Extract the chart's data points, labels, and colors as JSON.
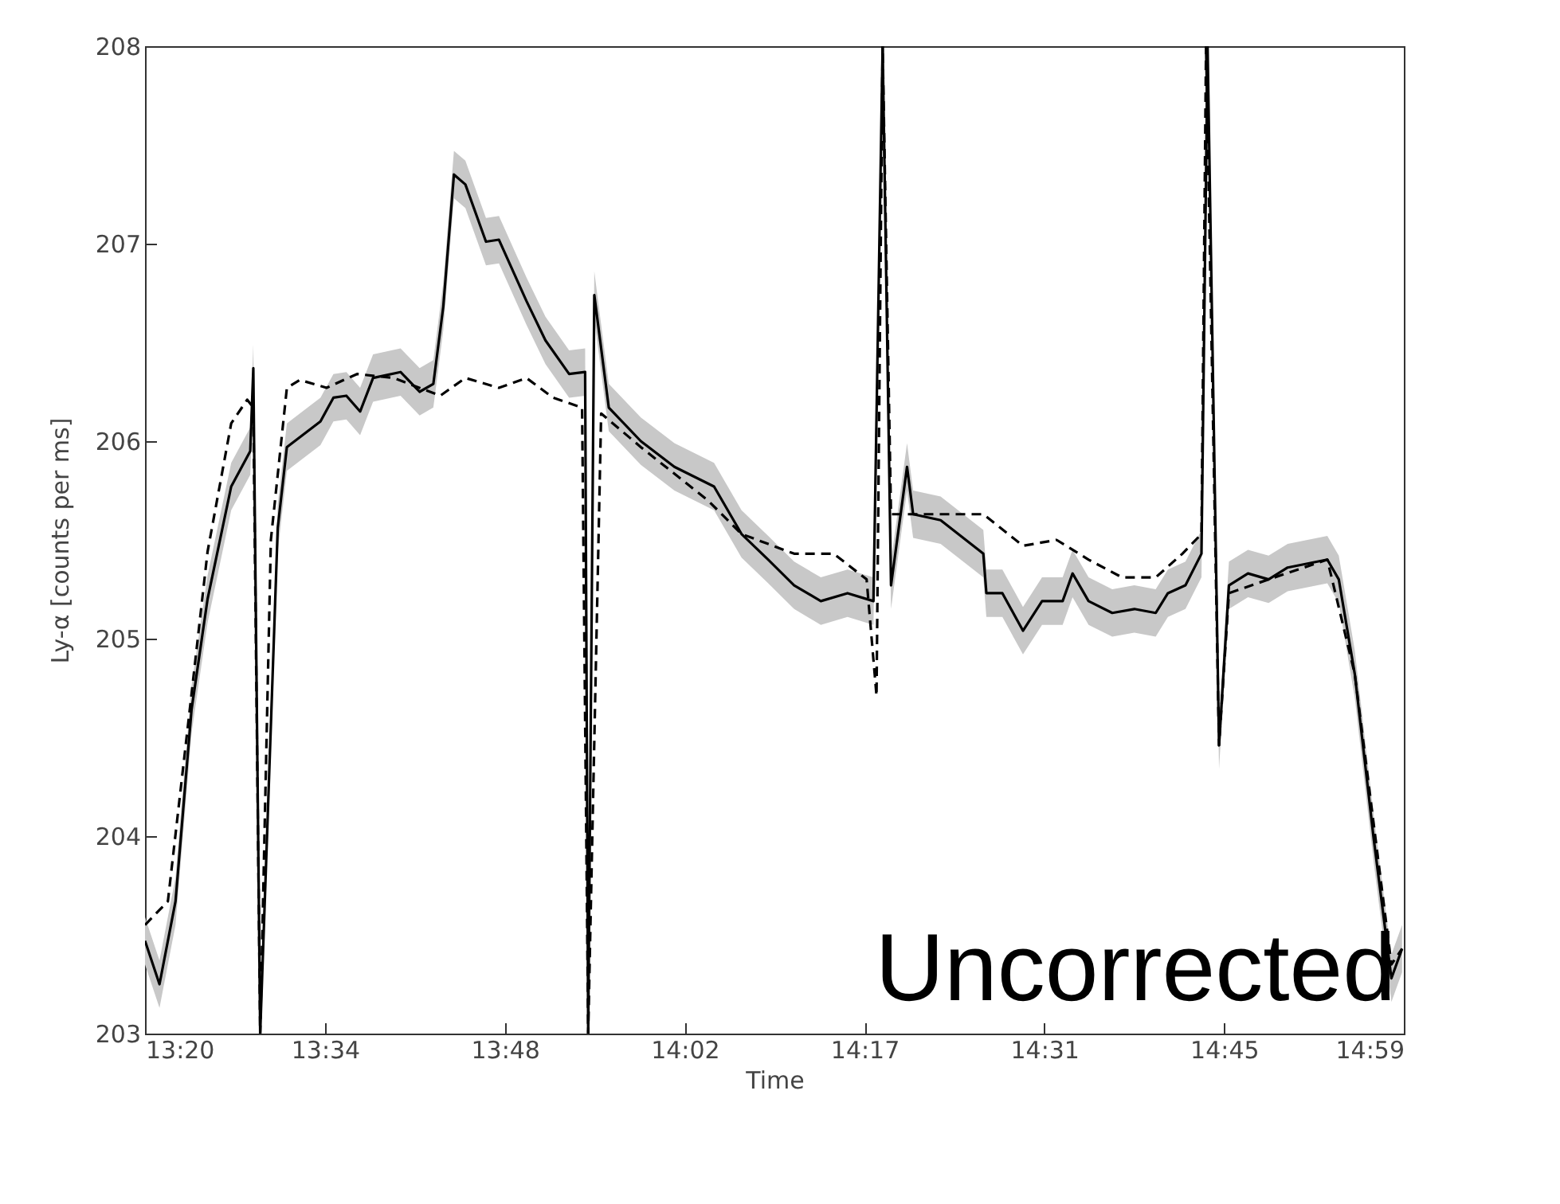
{
  "chart_data": {
    "type": "line",
    "xlabel": "Time",
    "ylabel": "Ly-α [counts per ms]",
    "annotations": [
      "Uncorrected"
    ],
    "xlim": [
      13.333,
      14.9833
    ],
    "ylim": [
      203,
      208
    ],
    "xticks": [
      {
        "value": 13.333,
        "label": "13:20"
      },
      {
        "value": 13.569,
        "label": "13:34"
      },
      {
        "value": 13.8048,
        "label": "13:48"
      },
      {
        "value": 14.0405,
        "label": "14:02"
      },
      {
        "value": 14.2762,
        "label": "14:17"
      },
      {
        "value": 14.5119,
        "label": "14:31"
      },
      {
        "value": 14.7476,
        "label": "14:45"
      },
      {
        "value": 14.9833,
        "label": "14:59"
      }
    ],
    "yticks": [
      203,
      204,
      205,
      206,
      207,
      208
    ],
    "grid": false,
    "marker": "none",
    "series": [
      {
        "color": "#000000",
        "line_style": "solid",
        "x": [
          13.333,
          13.352,
          13.373,
          13.394,
          13.415,
          13.446,
          13.471,
          13.475,
          13.484,
          13.507,
          13.519,
          13.563,
          13.58,
          13.597,
          13.615,
          13.632,
          13.668,
          13.693,
          13.711,
          13.724,
          13.738,
          13.753,
          13.78,
          13.797,
          13.833,
          13.858,
          13.889,
          13.91,
          13.914,
          13.922,
          13.941,
          13.983,
          14.027,
          14.079,
          14.115,
          14.15,
          14.184,
          14.219,
          14.254,
          14.288,
          14.3,
          14.311,
          14.332,
          14.34,
          14.376,
          14.419,
          14.432,
          14.436,
          14.457,
          14.484,
          14.509,
          14.536,
          14.549,
          14.57,
          14.601,
          14.63,
          14.658,
          14.674,
          14.697,
          14.718,
          14.726,
          14.741,
          14.754,
          14.779,
          14.806,
          14.831,
          14.883,
          14.898,
          14.919,
          14.944,
          14.967,
          14.981
        ],
        "values": [
          203.47,
          203.25,
          203.67,
          204.64,
          205.2,
          205.77,
          205.95,
          206.37,
          203.0,
          205.56,
          205.97,
          206.1,
          206.22,
          206.23,
          206.15,
          206.32,
          206.35,
          206.25,
          206.29,
          206.68,
          207.35,
          207.3,
          207.01,
          207.02,
          206.71,
          206.51,
          206.34,
          206.35,
          203.0,
          206.74,
          206.17,
          206.0,
          205.87,
          205.77,
          205.53,
          205.4,
          205.27,
          205.19,
          205.23,
          205.19,
          208.0,
          205.27,
          205.87,
          205.63,
          205.6,
          205.47,
          205.43,
          205.23,
          205.23,
          205.04,
          205.19,
          205.19,
          205.33,
          205.19,
          205.13,
          205.15,
          205.13,
          205.23,
          205.27,
          205.43,
          208.0,
          204.46,
          205.27,
          205.33,
          205.3,
          205.36,
          205.4,
          205.3,
          204.82,
          203.98,
          203.28,
          203.43
        ],
        "lower": [
          203.35,
          203.13,
          203.55,
          204.52,
          205.08,
          205.65,
          205.83,
          206.25,
          203.0,
          205.44,
          205.85,
          205.98,
          206.1,
          206.11,
          206.03,
          206.2,
          206.23,
          206.13,
          206.17,
          206.56,
          207.23,
          207.18,
          206.89,
          206.9,
          206.59,
          206.39,
          206.22,
          206.23,
          203.0,
          206.62,
          206.05,
          205.88,
          205.75,
          205.65,
          205.41,
          205.28,
          205.15,
          205.07,
          205.11,
          205.07,
          207.88,
          205.15,
          205.75,
          205.51,
          205.48,
          205.35,
          205.31,
          205.11,
          205.11,
          204.92,
          205.07,
          205.07,
          205.21,
          205.07,
          205.01,
          205.03,
          205.01,
          205.11,
          205.15,
          205.31,
          207.88,
          204.34,
          205.15,
          205.21,
          205.18,
          205.24,
          205.28,
          205.18,
          204.7,
          203.86,
          203.16,
          203.31
        ],
        "upper": [
          203.59,
          203.37,
          203.79,
          204.76,
          205.32,
          205.89,
          206.07,
          206.49,
          203.12,
          205.68,
          206.09,
          206.22,
          206.34,
          206.35,
          206.27,
          206.44,
          206.47,
          206.37,
          206.41,
          206.8,
          207.47,
          207.42,
          207.13,
          207.14,
          206.83,
          206.63,
          206.46,
          206.47,
          203.12,
          206.86,
          206.29,
          206.12,
          205.99,
          205.89,
          205.65,
          205.52,
          205.39,
          205.31,
          205.35,
          205.31,
          208.0,
          205.39,
          205.99,
          205.75,
          205.72,
          205.59,
          205.55,
          205.35,
          205.35,
          205.16,
          205.31,
          205.31,
          205.45,
          205.31,
          205.25,
          205.27,
          205.25,
          205.35,
          205.39,
          205.55,
          208.0,
          204.58,
          205.39,
          205.45,
          205.42,
          205.48,
          205.52,
          205.42,
          204.94,
          204.1,
          203.4,
          203.55
        ]
      },
      {
        "color": "#000000",
        "line_style": "dashed",
        "x": [
          13.333,
          13.363,
          13.394,
          13.415,
          13.446,
          13.467,
          13.475,
          13.484,
          13.498,
          13.507,
          13.519,
          13.536,
          13.571,
          13.611,
          13.659,
          13.72,
          13.753,
          13.797,
          13.833,
          13.868,
          13.906,
          13.914,
          13.931,
          13.983,
          14.071,
          14.115,
          14.184,
          14.236,
          14.279,
          14.292,
          14.3,
          14.311,
          14.351,
          14.432,
          14.484,
          14.528,
          14.57,
          14.614,
          14.658,
          14.693,
          14.718,
          14.724,
          14.741,
          14.754,
          14.806,
          14.883,
          14.919,
          14.967,
          14.981
        ],
        "values": [
          203.55,
          203.67,
          204.72,
          205.44,
          206.09,
          206.21,
          206.17,
          203.0,
          205.5,
          205.83,
          206.27,
          206.31,
          206.27,
          206.34,
          206.32,
          206.23,
          206.32,
          206.27,
          206.32,
          206.22,
          206.17,
          203.0,
          206.14,
          205.97,
          205.7,
          205.53,
          205.43,
          205.43,
          205.3,
          204.71,
          208.0,
          205.63,
          205.63,
          205.63,
          205.47,
          205.5,
          205.4,
          205.31,
          205.31,
          205.43,
          205.53,
          208.0,
          204.46,
          205.23,
          205.3,
          205.4,
          204.82,
          203.35,
          203.43
        ]
      }
    ]
  }
}
